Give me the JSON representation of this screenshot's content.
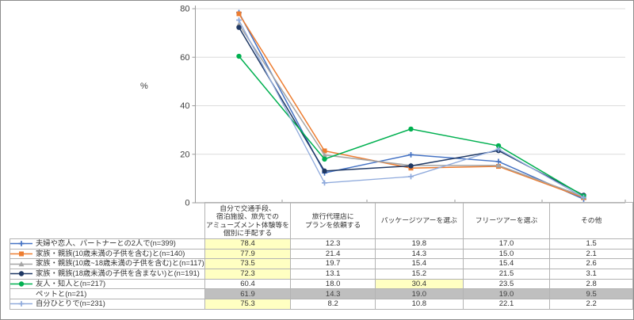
{
  "chart_data": {
    "type": "line",
    "title": "",
    "ylabel": "%",
    "xlabel": "",
    "ylim": [
      0,
      80
    ],
    "y_ticks": [
      0,
      20,
      40,
      60,
      80
    ],
    "grid": true,
    "legend_position": "table-row-labels",
    "categories": [
      "自分で交通手段、\n宿泊施設、旅先での\nアミューズメント体験等を\n個別に手配する",
      "旅行代理店に\nプランを依頼する",
      "パッケージツアーを選ぶ",
      "フリーツアーを選ぶ",
      "その他"
    ],
    "series": [
      {
        "name": "夫婦や恋人、パートナーとの2人で(n=399)",
        "values": [
          78.4,
          12.3,
          19.8,
          17.0,
          1.5
        ],
        "color": "#4472C4",
        "marker": "plus",
        "plotted": true
      },
      {
        "name": "家族・親族(10歳未満の子供を含む)と(n=140)",
        "values": [
          77.9,
          21.4,
          14.3,
          15.0,
          2.1
        ],
        "color": "#ED7D31",
        "marker": "square",
        "plotted": true
      },
      {
        "name": "家族・親族(10歳~18歳未満の子供を含む)と(n=117)",
        "values": [
          73.5,
          19.7,
          15.4,
          15.4,
          2.6
        ],
        "color": "#A5A5A5",
        "marker": "triangle",
        "plotted": true
      },
      {
        "name": "家族・親族(18歳未満の子供を含まない)と(n=191)",
        "values": [
          72.3,
          13.1,
          15.2,
          21.5,
          3.1
        ],
        "color": "#1F3864",
        "marker": "circle",
        "plotted": true
      },
      {
        "name": "友人・知人と(n=217)",
        "values": [
          60.4,
          18.0,
          30.4,
          23.5,
          2.8
        ],
        "color": "#00B050",
        "marker": "circle",
        "plotted": true
      },
      {
        "name": "ペットと(n=21)",
        "values": [
          61.9,
          14.3,
          19.0,
          19.0,
          9.5
        ],
        "color": null,
        "marker": "none",
        "plotted": false
      },
      {
        "name": "自分ひとりで(n=231)",
        "values": [
          75.3,
          8.2,
          10.8,
          22.1,
          2.2
        ],
        "color": "#8FAADC",
        "marker": "plus",
        "plotted": true
      }
    ]
  },
  "table": {
    "corner_label": "",
    "value_format": "one-decimal",
    "highlight_yellow_cells": [
      [
        0,
        0
      ],
      [
        1,
        0
      ],
      [
        2,
        0
      ],
      [
        3,
        0
      ],
      [
        4,
        2
      ],
      [
        6,
        0
      ]
    ],
    "muted_gray_rows": [
      5
    ],
    "colors": {
      "highlight_yellow": "#FFFFC2",
      "muted_gray": "#BFBFBF",
      "grid_border": "#b3b3b3"
    }
  }
}
